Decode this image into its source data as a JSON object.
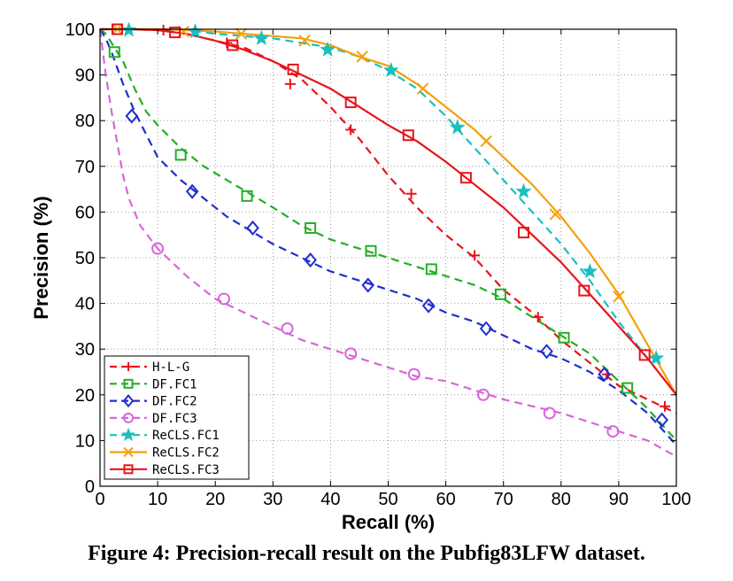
{
  "caption": "Figure 4: Precision-recall result on the Pubfig83LFW dataset.",
  "chart_data": {
    "type": "line",
    "title": "",
    "xlabel": "Recall (%)",
    "ylabel": "Precision (%)",
    "xlim": [
      0,
      100
    ],
    "ylim": [
      0,
      100
    ],
    "xticks": [
      0,
      10,
      20,
      30,
      40,
      50,
      60,
      70,
      80,
      90,
      100
    ],
    "yticks": [
      0,
      10,
      20,
      30,
      40,
      50,
      60,
      70,
      80,
      90,
      100
    ],
    "grid": true,
    "legend_position": "bottom-left",
    "series": [
      {
        "name": "H-L-G",
        "color": "#e8141b",
        "dash": "dashed",
        "marker": "plus",
        "x": [
          0,
          5,
          10,
          15,
          20,
          25,
          30,
          35,
          40,
          45,
          50,
          55,
          60,
          65,
          70,
          75,
          80,
          85,
          90,
          95,
          100
        ],
        "y": [
          100,
          100,
          99.8,
          99,
          97.5,
          96,
          93,
          89,
          83,
          76,
          68,
          61,
          55,
          50,
          43,
          38,
          32,
          27,
          22,
          19,
          16
        ],
        "markers": [
          [
            11,
            99.8
          ],
          [
            22,
            97
          ],
          [
            33,
            88
          ],
          [
            43.5,
            78
          ],
          [
            54,
            64
          ],
          [
            65,
            50.5
          ],
          [
            76,
            37
          ],
          [
            88,
            24.5
          ],
          [
            98,
            17.5
          ]
        ]
      },
      {
        "name": "DF.FC1",
        "color": "#22b022",
        "dash": "dashed",
        "marker": "square",
        "x": [
          0,
          1,
          2,
          4,
          6,
          8,
          10,
          14,
          18,
          22,
          26,
          30,
          35,
          40,
          45,
          50,
          55,
          60,
          65,
          70,
          75,
          80,
          85,
          90,
          95,
          100
        ],
        "y": [
          100,
          99,
          97,
          93,
          87,
          82,
          79,
          74,
          70,
          67,
          64,
          61,
          57,
          54,
          52,
          50,
          48,
          46,
          44,
          41,
          37,
          33,
          29,
          23,
          17,
          10
        ],
        "markers": [
          [
            2.5,
            95
          ],
          [
            14,
            72.5
          ],
          [
            25.5,
            63.5
          ],
          [
            36.5,
            56.5
          ],
          [
            47,
            51.5
          ],
          [
            57.5,
            47.5
          ],
          [
            69.5,
            42
          ],
          [
            80.5,
            32.5
          ],
          [
            91.5,
            21.5
          ]
        ]
      },
      {
        "name": "DF.FC2",
        "color": "#1f2fcf",
        "dash": "dashed",
        "marker": "diamond",
        "x": [
          0,
          1,
          2,
          4,
          6,
          8,
          10,
          14,
          18,
          22,
          26,
          30,
          35,
          40,
          45,
          50,
          55,
          60,
          65,
          70,
          75,
          80,
          85,
          90,
          95,
          100
        ],
        "y": [
          100,
          98,
          95,
          88,
          82,
          77,
          72,
          67,
          63,
          59,
          56,
          53,
          50,
          47,
          45,
          43,
          41,
          38,
          36,
          33,
          30,
          28,
          25,
          21,
          16,
          9
        ],
        "markers": [
          [
            5.5,
            81
          ],
          [
            16,
            64.5
          ],
          [
            26.5,
            56.5
          ],
          [
            36.5,
            49.5
          ],
          [
            46.5,
            44
          ],
          [
            57,
            39.5
          ],
          [
            67,
            34.5
          ],
          [
            77.5,
            29.5
          ],
          [
            87.5,
            24.5
          ],
          [
            97.5,
            14.5
          ]
        ]
      },
      {
        "name": "DF.FC3",
        "color": "#d966d9",
        "dash": "dashed",
        "marker": "circle",
        "x": [
          0,
          0.5,
          1,
          2,
          3,
          4,
          5,
          7,
          10,
          15,
          20,
          25,
          30,
          35,
          40,
          45,
          50,
          55,
          60,
          65,
          70,
          75,
          80,
          85,
          90,
          95,
          100
        ],
        "y": [
          100,
          95,
          90,
          82,
          75,
          68,
          63,
          57,
          52,
          46,
          41,
          38,
          35,
          32,
          30,
          28,
          26,
          24,
          23,
          21,
          19,
          17.5,
          16,
          14,
          12,
          10,
          6.5
        ],
        "markers": [
          [
            10,
            52
          ],
          [
            21.5,
            41
          ],
          [
            32.5,
            34.5
          ],
          [
            43.5,
            29
          ],
          [
            54.5,
            24.5
          ],
          [
            66.5,
            20
          ],
          [
            78,
            16
          ],
          [
            89,
            12
          ]
        ]
      },
      {
        "name": "ReCLS.FC1",
        "color": "#1bbfbf",
        "dash": "dashed",
        "marker": "star",
        "x": [
          0,
          5,
          10,
          15,
          20,
          25,
          30,
          35,
          40,
          45,
          50,
          55,
          60,
          65,
          70,
          75,
          80,
          85,
          90,
          95,
          100
        ],
        "y": [
          100,
          100,
          100,
          99.8,
          99,
          98.5,
          98,
          97,
          96,
          94,
          91,
          87,
          81,
          74,
          67,
          60,
          53,
          45,
          36,
          28,
          20
        ],
        "markers": [
          [
            5,
            99.8
          ],
          [
            16.5,
            99.5
          ],
          [
            28,
            98
          ],
          [
            39.5,
            95.5
          ],
          [
            50.5,
            91
          ],
          [
            62,
            78.5
          ],
          [
            73.5,
            64.5
          ],
          [
            85,
            47
          ],
          [
            96.5,
            28
          ]
        ]
      },
      {
        "name": "ReCLS.FC2",
        "color": "#f5a00a",
        "dash": "solid",
        "marker": "x",
        "x": [
          0,
          5,
          10,
          15,
          20,
          25,
          30,
          35,
          40,
          45,
          50,
          55,
          60,
          65,
          70,
          75,
          80,
          85,
          90,
          95,
          100
        ],
        "y": [
          100,
          100,
          100,
          99.8,
          99.5,
          99,
          98.5,
          98,
          96.5,
          94,
          92,
          88,
          83,
          78,
          72,
          66,
          59,
          51,
          42,
          31,
          20
        ],
        "markers": [
          [
            3,
            100
          ],
          [
            14.5,
            99.5
          ],
          [
            24.5,
            99
          ],
          [
            35.5,
            97.5
          ],
          [
            45.5,
            94
          ],
          [
            56,
            87
          ],
          [
            67,
            75.5
          ],
          [
            79,
            59.5
          ],
          [
            90,
            41.5
          ]
        ]
      },
      {
        "name": "ReCLS.FC3",
        "color": "#e8141b",
        "dash": "solid",
        "marker": "square",
        "x": [
          0,
          5,
          10,
          15,
          20,
          25,
          30,
          35,
          40,
          45,
          50,
          55,
          60,
          65,
          70,
          75,
          80,
          85,
          90,
          95,
          100
        ],
        "y": [
          100,
          100,
          99.8,
          99,
          97.5,
          95.5,
          93,
          90,
          87,
          83,
          79,
          75.5,
          71,
          66,
          61,
          55,
          49,
          42,
          35,
          28,
          20
        ],
        "markers": [
          [
            3,
            100
          ],
          [
            13,
            99.3
          ],
          [
            23,
            96.5
          ],
          [
            33.5,
            91.2
          ],
          [
            43.5,
            84
          ],
          [
            53.5,
            76.8
          ],
          [
            63.5,
            67.5
          ],
          [
            73.5,
            55.5
          ],
          [
            84,
            42.8
          ],
          [
            94.5,
            28.7
          ]
        ]
      }
    ]
  }
}
